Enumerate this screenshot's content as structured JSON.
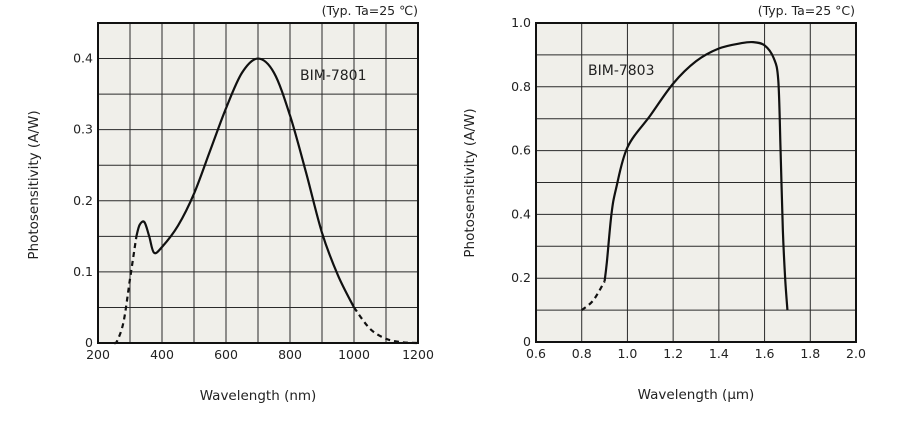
{
  "chart_data": [
    {
      "type": "line",
      "title": "BIM-7801",
      "note": "(Typ. Ta=25 ℃)",
      "xlabel": "Wavelength (nm)",
      "ylabel": "Photosensitivity (A/W)",
      "xlim": [
        200,
        1200
      ],
      "ylim": [
        0,
        0.45
      ],
      "xticks": [
        "200",
        "400",
        "600",
        "800",
        "1000",
        "1200"
      ],
      "xtick_values": [
        200,
        400,
        600,
        800,
        1000,
        1200
      ],
      "yticks": [
        "0",
        "0.1",
        "0.2",
        "0.3",
        "0.4"
      ],
      "ytick_values": [
        0,
        0.1,
        0.2,
        0.3,
        0.4
      ],
      "xgrid_step": 100,
      "ygrid_step": 0.05,
      "grid": true,
      "series": [
        {
          "name": "BIM-7801 low (extrapolated)",
          "style": "dashed",
          "x": [
            250,
            260,
            280,
            300,
            320
          ],
          "y": [
            0,
            0.003,
            0.03,
            0.09,
            0.15
          ]
        },
        {
          "name": "BIM-7801",
          "style": "solid",
          "x": [
            320,
            330,
            345,
            360,
            375,
            400,
            450,
            500,
            550,
            600,
            650,
            700,
            750,
            800,
            850,
            900,
            950,
            1000
          ],
          "y": [
            0.15,
            0.166,
            0.17,
            0.15,
            0.127,
            0.135,
            0.165,
            0.21,
            0.27,
            0.33,
            0.38,
            0.4,
            0.38,
            0.32,
            0.24,
            0.155,
            0.095,
            0.05
          ]
        },
        {
          "name": "BIM-7801 high (extrapolated)",
          "style": "dashed",
          "x": [
            1000,
            1050,
            1100,
            1150,
            1200
          ],
          "y": [
            0.05,
            0.02,
            0.006,
            0.001,
            0
          ]
        }
      ]
    },
    {
      "type": "line",
      "title": "BIM-7803",
      "note": "(Typ. Ta=25 °C)",
      "xlabel": "Wavelength (μm)",
      "ylabel": "Photosensitivity (A/W)",
      "xlim": [
        0.6,
        2.0
      ],
      "ylim": [
        0,
        1.0
      ],
      "xticks": [
        "0.6",
        "0.8",
        "1.0",
        "1.2",
        "1.4",
        "1.6",
        "1.8",
        "2.0"
      ],
      "xtick_values": [
        0.6,
        0.8,
        1.0,
        1.2,
        1.4,
        1.6,
        1.8,
        2.0
      ],
      "yticks": [
        "0",
        "0.2",
        "0.4",
        "0.6",
        "0.8",
        "1.0"
      ],
      "ytick_values": [
        0,
        0.2,
        0.4,
        0.6,
        0.8,
        1.0
      ],
      "xgrid_step": 0.2,
      "ygrid_step": 0.1,
      "grid": true,
      "series": [
        {
          "name": "BIM-7803 low (extrapolated)",
          "style": "dashed",
          "x": [
            0.8,
            0.85,
            0.9
          ],
          "y": [
            0.1,
            0.13,
            0.19
          ]
        },
        {
          "name": "BIM-7803",
          "style": "solid",
          "x": [
            0.9,
            0.91,
            0.93,
            0.95,
            1.0,
            1.1,
            1.2,
            1.3,
            1.4,
            1.5,
            1.55,
            1.6,
            1.64,
            1.66,
            1.67,
            1.68,
            1.69,
            1.7
          ],
          "y": [
            0.19,
            0.25,
            0.4,
            0.48,
            0.61,
            0.71,
            0.81,
            0.88,
            0.92,
            0.937,
            0.94,
            0.93,
            0.89,
            0.82,
            0.6,
            0.35,
            0.2,
            0.1
          ]
        }
      ]
    }
  ],
  "colors": {
    "plot_bg": "#f0efea",
    "grid": "#2a2a2a",
    "line": "#111111"
  }
}
